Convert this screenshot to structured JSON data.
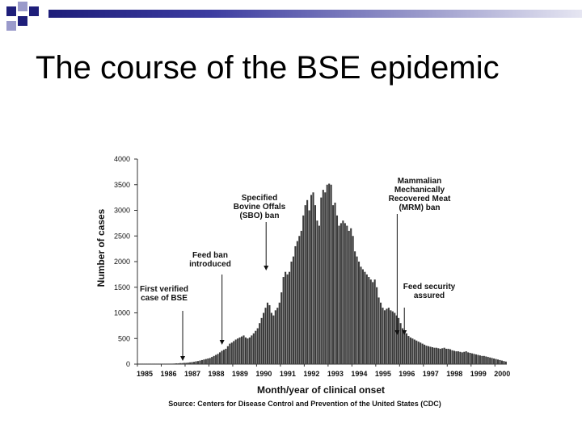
{
  "slide": {
    "title": "The course of the BSE epidemic"
  },
  "colors": {
    "accent_dark": "#1e1e7a",
    "accent_light": "#9a9acb",
    "bars": "#3a3a3a"
  },
  "chart_data": {
    "type": "bar",
    "ylabel": "Number of cases",
    "xlabel": "Month/year of clinical onset",
    "ylim": [
      0,
      4000
    ],
    "yticks": [
      0,
      500,
      1000,
      1500,
      2000,
      2500,
      3000,
      3500,
      4000
    ],
    "year_labels": [
      "1985",
      "1986",
      "1987",
      "1988",
      "1989",
      "1990",
      "1991",
      "1992",
      "1993",
      "1994",
      "1995",
      "1996",
      "1997",
      "1998",
      "1999",
      "2000"
    ],
    "x_start_year": 1985,
    "x_end_year": 2000.5,
    "monthly_cases": [
      {
        "year": 1985,
        "values": [
          0,
          0,
          0,
          0,
          0,
          0,
          0,
          0,
          0,
          5,
          5,
          5
        ]
      },
      {
        "year": 1986,
        "values": [
          5,
          5,
          8,
          8,
          10,
          10,
          12,
          15,
          15,
          20,
          20,
          25
        ]
      },
      {
        "year": 1987,
        "values": [
          25,
          30,
          35,
          40,
          45,
          55,
          60,
          70,
          80,
          90,
          100,
          110
        ]
      },
      {
        "year": 1988,
        "values": [
          120,
          140,
          160,
          180,
          200,
          230,
          260,
          280,
          300,
          350,
          400,
          420
        ]
      },
      {
        "year": 1989,
        "values": [
          450,
          480,
          500,
          520,
          540,
          560,
          520,
          500,
          520,
          560,
          600,
          650
        ]
      },
      {
        "year": 1990,
        "values": [
          700,
          800,
          900,
          1000,
          1100,
          1200,
          1150,
          1000,
          950,
          1050,
          1100,
          1200
        ]
      },
      {
        "year": 1991,
        "values": [
          1400,
          1700,
          1800,
          1750,
          1800,
          2000,
          2100,
          2300,
          2400,
          2500,
          2600,
          2900
        ]
      },
      {
        "year": 1992,
        "values": [
          3100,
          3200,
          3000,
          3300,
          3350,
          3100,
          2800,
          2700,
          3250,
          3400,
          3350,
          3500
        ]
      },
      {
        "year": 1993,
        "values": [
          3520,
          3500,
          3100,
          3150,
          2900,
          2700,
          2750,
          2800,
          2750,
          2700,
          2600,
          2650
        ]
      },
      {
        "year": 1994,
        "values": [
          2500,
          2200,
          2100,
          2000,
          1900,
          1850,
          1800,
          1750,
          1700,
          1650,
          1600,
          1650
        ]
      },
      {
        "year": 1995,
        "values": [
          1500,
          1300,
          1200,
          1100,
          1050,
          1080,
          1100,
          1050,
          1030,
          1000,
          950,
          900
        ]
      },
      {
        "year": 1996,
        "values": [
          800,
          700,
          650,
          600,
          550,
          520,
          500,
          480,
          460,
          440,
          420,
          400
        ]
      },
      {
        "year": 1997,
        "values": [
          380,
          360,
          350,
          340,
          330,
          320,
          320,
          310,
          300,
          310,
          320,
          300
        ]
      },
      {
        "year": 1998,
        "values": [
          300,
          290,
          270,
          260,
          250,
          250,
          240,
          230,
          240,
          250,
          230,
          220
        ]
      },
      {
        "year": 1999,
        "values": [
          210,
          200,
          190,
          180,
          170,
          160,
          160,
          150,
          140,
          130,
          120,
          110
        ]
      },
      {
        "year": 2000,
        "values": [
          100,
          90,
          80,
          70,
          60,
          50
        ]
      }
    ],
    "annotations": [
      {
        "text": "First verified case of BSE",
        "lines": [
          "First verified",
          "case of BSE"
        ],
        "year": 1986.9
      },
      {
        "text": "Feed ban introduced",
        "lines": [
          "Feed ban",
          "introduced"
        ],
        "year": 1988.55
      },
      {
        "text": "Specified Bovine Offals (SBO) ban",
        "lines": [
          "Specified",
          "Bovine Offals",
          "(SBO) ban"
        ],
        "year": 1990.4
      },
      {
        "text": "Mammalian Mechanically Recovered Meat (MRM) ban",
        "lines": [
          "Mammalian",
          "Mechanically",
          "Recovered Meat",
          "(MRM) ban"
        ],
        "year": 1995.9
      },
      {
        "text": "Feed security assured",
        "lines": [
          "Feed security",
          "assured"
        ],
        "year": 1996.2
      }
    ],
    "source": "Source: Centers for Disease Control and Prevention of the United States (CDC)"
  }
}
